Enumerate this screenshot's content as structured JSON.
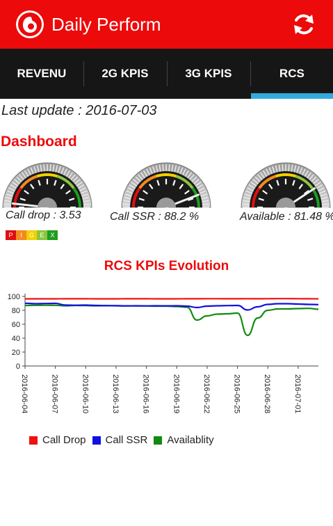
{
  "header": {
    "title": "Daily Perform",
    "brand_color": "#ec0a0a",
    "logo_icon": "vodafone-logo-icon",
    "refresh_icon": "refresh-icon"
  },
  "tabs": [
    {
      "label": "REVENU",
      "active": false
    },
    {
      "label": "2G KPIS",
      "active": false
    },
    {
      "label": "3G KPIS",
      "active": false
    },
    {
      "label": "RCS",
      "active": true
    }
  ],
  "tab_indicator_color": "#33a9dd",
  "last_update": "Last update : 2016-07-03",
  "dashboard": {
    "title": "Dashboard",
    "gauges": [
      {
        "label": "Call drop : 3.53",
        "value": 3.53,
        "max": 100
      },
      {
        "label": "Call SSR : 88.2 %",
        "value": 88.2,
        "max": 100
      },
      {
        "label": "Available : 81.48 %",
        "value": 81.48,
        "max": 100
      }
    ],
    "pigex": [
      {
        "letter": "P",
        "color": "#e20e0e"
      },
      {
        "letter": "I",
        "color": "#f58a1f"
      },
      {
        "letter": "G",
        "color": "#f3d000"
      },
      {
        "letter": "E",
        "color": "#8cc63f"
      },
      {
        "letter": "X",
        "color": "#1e9e1e"
      }
    ]
  },
  "chart_data": {
    "type": "line",
    "title": "RCS KPIs Evolution",
    "ylim": [
      0,
      100
    ],
    "yticks": [
      0,
      20,
      40,
      60,
      80,
      100
    ],
    "x_ticks": [
      "2016-06-04",
      "2016-06-07",
      "2016-06-10",
      "2016-06-13",
      "2016-06-16",
      "2016-06-19",
      "2016-06-22",
      "2016-06-25",
      "2016-06-28",
      "2016-07-01"
    ],
    "x": [
      "2016-06-04",
      "2016-06-05",
      "2016-06-06",
      "2016-06-07",
      "2016-06-08",
      "2016-06-09",
      "2016-06-10",
      "2016-06-11",
      "2016-06-12",
      "2016-06-13",
      "2016-06-14",
      "2016-06-15",
      "2016-06-16",
      "2016-06-17",
      "2016-06-18",
      "2016-06-19",
      "2016-06-20",
      "2016-06-21",
      "2016-06-22",
      "2016-06-23",
      "2016-06-24",
      "2016-06-25",
      "2016-06-26",
      "2016-06-27",
      "2016-06-28",
      "2016-06-29",
      "2016-06-30",
      "2016-07-01",
      "2016-07-02",
      "2016-07-03"
    ],
    "series": [
      {
        "name": "Call Drop",
        "color": "#f01010",
        "values": [
          96.5,
          96.5,
          96.5,
          96.5,
          96.6,
          96.6,
          96.6,
          96.5,
          96.5,
          96.5,
          96.6,
          96.6,
          96.6,
          96.5,
          96.5,
          96.5,
          96.6,
          96.6,
          96.7,
          96.7,
          96.6,
          96.6,
          96.7,
          96.6,
          96.7,
          96.8,
          96.8,
          96.7,
          96.6,
          96.5
        ]
      },
      {
        "name": "Call SSR",
        "color": "#1010e0",
        "values": [
          90.2,
          89.5,
          89.8,
          90.0,
          87.5,
          87.3,
          87.5,
          87.0,
          86.8,
          86.6,
          86.4,
          86.5,
          86.3,
          86.5,
          86.4,
          86.5,
          86.0,
          84.0,
          86.0,
          86.5,
          86.8,
          87.0,
          80.5,
          85.0,
          88.5,
          89.5,
          89.5,
          89.0,
          88.5,
          88.2
        ]
      },
      {
        "name": "Availablity",
        "color": "#128a12",
        "values": [
          87.0,
          87.2,
          87.3,
          87.2,
          86.5,
          87.0,
          86.8,
          86.5,
          86.6,
          86.5,
          86.3,
          86.4,
          86.3,
          86.0,
          86.0,
          85.5,
          84.5,
          66.0,
          72.0,
          74.5,
          75.0,
          76.0,
          44.0,
          69.0,
          80.0,
          82.0,
          82.0,
          82.5,
          82.8,
          81.5
        ]
      }
    ]
  }
}
